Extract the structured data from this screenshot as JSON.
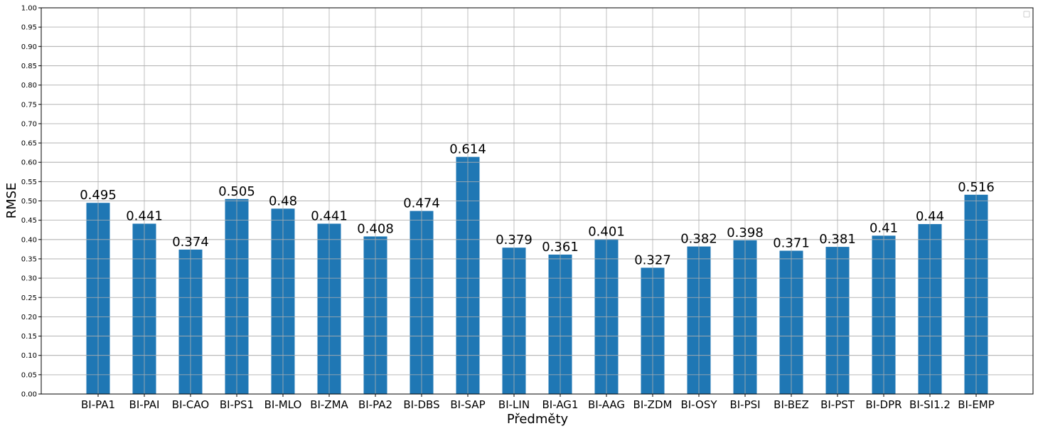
{
  "chart_data": {
    "type": "bar",
    "xlabel": "Předměty",
    "ylabel": "RMSE",
    "ylim": [
      0,
      1.0
    ],
    "ytick_step": 0.05,
    "grid": true,
    "legend": "top-right",
    "bar_color": "#1f77b4",
    "categories": [
      "BI-PA1",
      "BI-PAI",
      "BI-CAO",
      "BI-PS1",
      "BI-MLO",
      "BI-ZMA",
      "BI-PA2",
      "BI-DBS",
      "BI-SAP",
      "BI-LIN",
      "BI-AG1",
      "BI-AAG",
      "BI-ZDM",
      "BI-OSY",
      "BI-PSI",
      "BI-BEZ",
      "BI-PST",
      "BI-DPR",
      "BI-SI1.2",
      "BI-EMP"
    ],
    "values": [
      0.495,
      0.441,
      0.374,
      0.505,
      0.48,
      0.441,
      0.408,
      0.474,
      0.614,
      0.379,
      0.361,
      0.401,
      0.327,
      0.382,
      0.398,
      0.371,
      0.381,
      0.41,
      0.44,
      0.516
    ],
    "value_labels": [
      "0.495",
      "0.441",
      "0.374",
      "0.505",
      "0.48",
      "0.441",
      "0.408",
      "0.474",
      "0.614",
      "0.379",
      "0.361",
      "0.401",
      "0.327",
      "0.382",
      "0.398",
      "0.371",
      "0.381",
      "0.41",
      "0.44",
      "0.516"
    ]
  }
}
